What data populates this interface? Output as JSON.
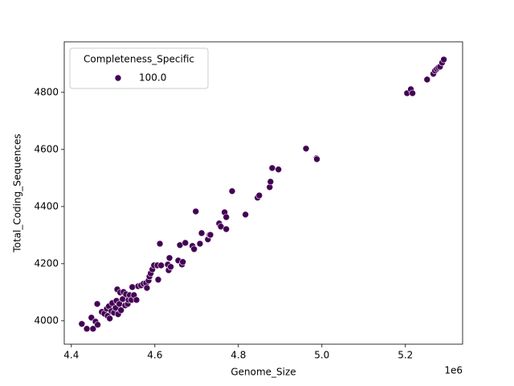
{
  "chart_data": {
    "type": "scatter",
    "xlabel": "Genome_Size",
    "ylabel": "Total_Coding_Sequences",
    "x_offset_label": "1e6",
    "legend_title": "Completeness_Specific",
    "legend": "upper left",
    "xlim": [
      4.383,
      5.337
    ],
    "ylim": [
      3918,
      4977
    ],
    "xticks": [
      4.4,
      4.6,
      4.8,
      {
        "value": 5.0,
        "label": "5.0"
      },
      5.2
    ],
    "yticks": [
      4000,
      4200,
      4400,
      4600,
      4800
    ],
    "grid": false,
    "series": [
      {
        "name": "100.0",
        "color": "#440154",
        "x": [
          4.425,
          4.437,
          4.448,
          4.452,
          4.458,
          4.462,
          4.463,
          4.473,
          4.479,
          4.485,
          4.487,
          4.49,
          4.492,
          4.496,
          4.498,
          4.502,
          4.506,
          4.508,
          4.51,
          4.512,
          4.515,
          4.517,
          4.519,
          4.523,
          4.525,
          4.529,
          4.531,
          4.535,
          4.537,
          4.54,
          4.544,
          4.546,
          4.55,
          4.556,
          4.56,
          4.567,
          4.573,
          4.579,
          4.581,
          4.585,
          4.587,
          4.59,
          4.594,
          4.598,
          4.606,
          4.608,
          4.612,
          4.615,
          4.631,
          4.633,
          4.635,
          4.638,
          4.656,
          4.66,
          4.665,
          4.667,
          4.673,
          4.69,
          4.694,
          4.698,
          4.708,
          4.712,
          4.727,
          4.731,
          4.733,
          4.754,
          4.758,
          4.767,
          4.771,
          4.771,
          4.785,
          4.817,
          4.846,
          4.85,
          4.875,
          4.877,
          4.881,
          4.896,
          4.962,
          4.987,
          4.988,
          5.204,
          5.213,
          5.217,
          5.252,
          5.267,
          5.271,
          5.275,
          5.279,
          5.283,
          5.288,
          5.292
        ],
        "values": [
          3989,
          3972,
          4011,
          3972,
          3997,
          4059,
          3986,
          4031,
          4025,
          4042,
          4017,
          4051,
          4008,
          4034,
          4062,
          4028,
          4045,
          4070,
          4110,
          4023,
          4059,
          4099,
          4037,
          4076,
          4101,
          4054,
          4093,
          4059,
          4073,
          4090,
          4073,
          4118,
          4090,
          4073,
          4121,
          4124,
          4130,
          4132,
          4115,
          4141,
          4155,
          4166,
          4180,
          4194,
          4194,
          4144,
          4270,
          4194,
          4197,
          4177,
          4220,
          4189,
          4211,
          4265,
          4197,
          4206,
          4273,
          4262,
          4251,
          4383,
          4270,
          4307,
          4285,
          4301,
          4301,
          4341,
          4330,
          4380,
          4363,
          4321,
          4454,
          4372,
          4431,
          4439,
          4468,
          4487,
          4535,
          4530,
          4603,
          4569,
          4566,
          4797,
          4811,
          4797,
          4845,
          4865,
          4876,
          4882,
          4887,
          4890,
          4904,
          4915
        ]
      }
    ]
  }
}
